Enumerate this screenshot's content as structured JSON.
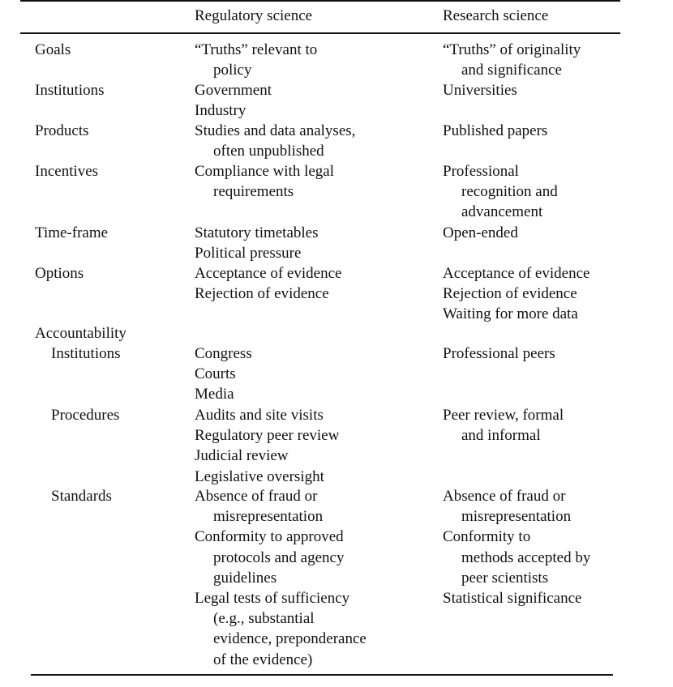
{
  "header": {
    "col_regulatory": "Regulatory science",
    "col_research": "Research science"
  },
  "rows": [
    {
      "label": "Goals",
      "sub": false,
      "regulatory": [
        [
          "“Truths” relevant to",
          "policy"
        ]
      ],
      "research": [
        [
          "“Truths” of originality",
          "and significance"
        ]
      ]
    },
    {
      "label": "Institutions",
      "sub": false,
      "regulatory": [
        [
          "Government"
        ],
        [
          "Industry"
        ]
      ],
      "research": [
        [
          "Universities"
        ]
      ]
    },
    {
      "label": "Products",
      "sub": false,
      "regulatory": [
        [
          "Studies and data analyses,",
          "often unpublished"
        ]
      ],
      "research": [
        [
          "Published papers"
        ]
      ]
    },
    {
      "label": "Incentives",
      "sub": false,
      "regulatory": [
        [
          "Compliance with legal",
          "requirements"
        ]
      ],
      "research": [
        [
          "Professional",
          "recognition and",
          "advancement"
        ]
      ]
    },
    {
      "label": "Time-frame",
      "sub": false,
      "regulatory": [
        [
          "Statutory timetables"
        ],
        [
          "Political pressure"
        ]
      ],
      "research": [
        [
          "Open-ended"
        ]
      ]
    },
    {
      "label": "Options",
      "sub": false,
      "regulatory": [
        [
          "Acceptance of evidence"
        ],
        [
          "Rejection of evidence"
        ]
      ],
      "research": [
        [
          "Acceptance of evidence"
        ],
        [
          "Rejection of evidence"
        ],
        [
          "Waiting for more data"
        ]
      ]
    },
    {
      "label": "Accountability",
      "sub": false,
      "regulatory": [],
      "research": []
    },
    {
      "label": "Institutions",
      "sub": true,
      "regulatory": [
        [
          "Congress"
        ],
        [
          "Courts"
        ],
        [
          "Media"
        ]
      ],
      "research": [
        [
          "Professional peers"
        ]
      ]
    },
    {
      "label": "Procedures",
      "sub": true,
      "regulatory": [
        [
          "Audits and site visits"
        ],
        [
          "Regulatory peer review"
        ],
        [
          "Judicial review"
        ],
        [
          "Legislative oversight"
        ]
      ],
      "research": [
        [
          "Peer review, formal",
          "and informal"
        ]
      ]
    },
    {
      "label": "Standards",
      "sub": true,
      "regulatory": [
        [
          "Absence of fraud or",
          "misrepresentation"
        ],
        [
          "Conformity to approved",
          "protocols and agency",
          "guidelines"
        ],
        [
          "Legal tests of sufficiency",
          "(e.g., substantial",
          "evidence, preponderance",
          "of the evidence)"
        ]
      ],
      "research": [
        [
          "Absence of fraud or",
          "misrepresentation"
        ],
        [
          "Conformity to",
          "methods accepted by",
          "peer scientists"
        ],
        [
          "Statistical significance"
        ]
      ]
    }
  ]
}
